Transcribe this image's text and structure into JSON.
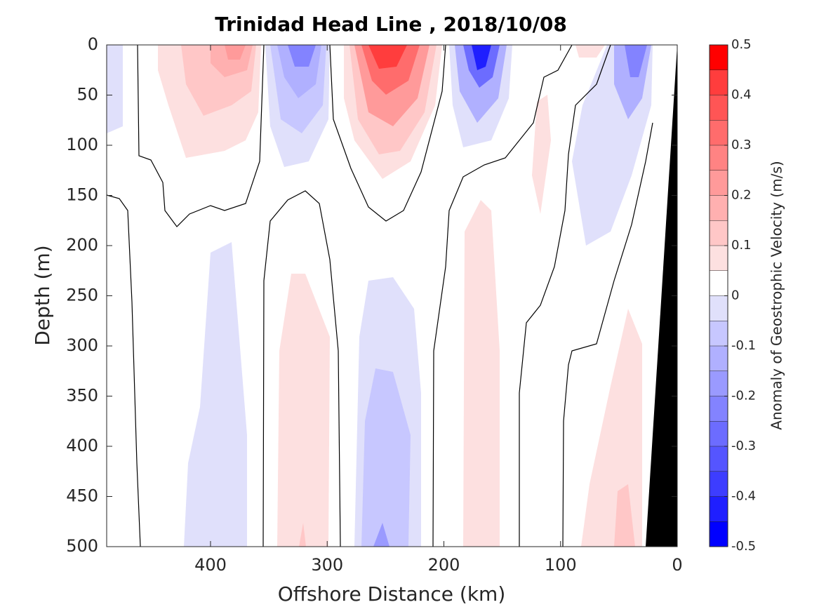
{
  "chart_data": {
    "type": "contour",
    "title": "Trinidad Head Line , 2018/10/08",
    "xlabel": "Offshore Distance (km)",
    "ylabel": "Depth (m)",
    "xlim": [
      489,
      0
    ],
    "xticks": [
      400,
      300,
      200,
      100,
      0
    ],
    "ylim": [
      500,
      0
    ],
    "yticks": [
      0,
      50,
      100,
      150,
      200,
      250,
      300,
      350,
      400,
      450,
      500
    ],
    "colorbar": {
      "label": "Anomaly of Geostrophic Velocity (m/s)",
      "levels": [
        -0.5,
        -0.45,
        -0.4,
        -0.35,
        -0.3,
        -0.25,
        -0.2,
        -0.15,
        -0.1,
        -0.05,
        0,
        0.05,
        0.1,
        0.15,
        0.2,
        0.25,
        0.3,
        0.35,
        0.4,
        0.45,
        0.5
      ],
      "colors": [
        "#0000ff",
        "#1f1fff",
        "#3d3dff",
        "#5555ff",
        "#6c6cff",
        "#8383ff",
        "#9a9aff",
        "#b0b0ff",
        "#c7c7ff",
        "#e0e0fb",
        "#ffffff",
        "#fde0e0",
        "#ffc7c7",
        "#ffb0b0",
        "#ff9a9a",
        "#ff8383",
        "#ff6c6c",
        "#ff5555",
        "#ff3d3d",
        "#ff0000"
      ],
      "ticks": [
        -0.5,
        -0.4,
        -0.3,
        -0.2,
        -0.1,
        0,
        0.1,
        0.2,
        0.3,
        0.4,
        0.5
      ]
    }
  }
}
